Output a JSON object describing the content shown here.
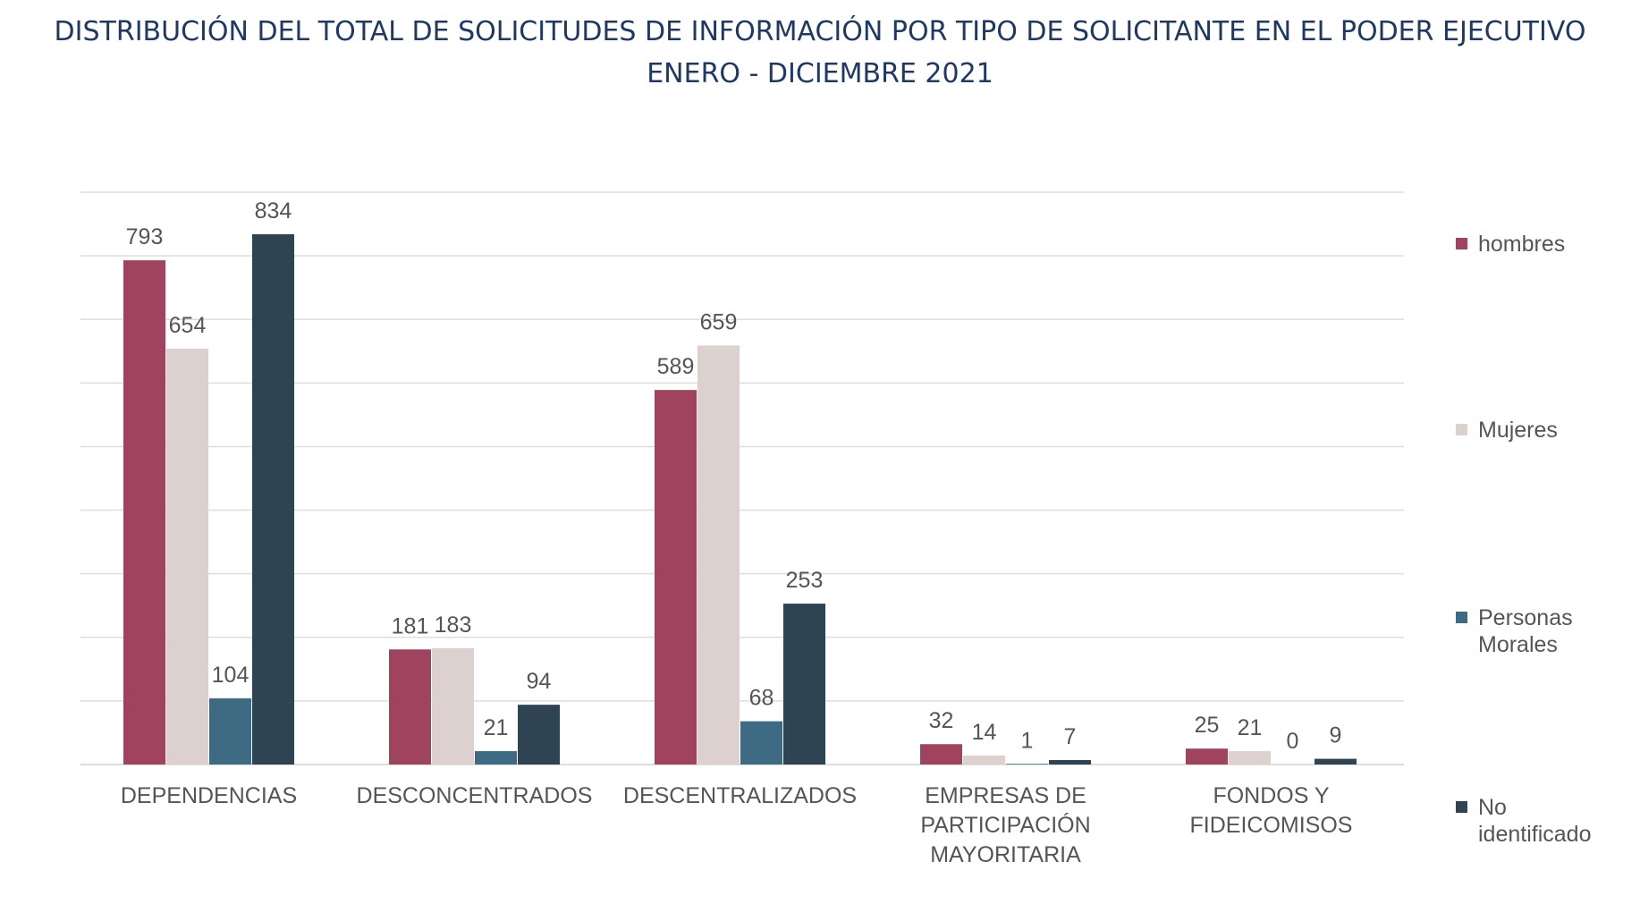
{
  "title": {
    "line1": "DISTRIBUCIÓN DEL TOTAL DE SOLICITUDES DE INFORMACIÓN POR TIPO DE SOLICITANTE EN EL PODER EJECUTIVO",
    "line2": "ENERO - DICIEMBRE 2021"
  },
  "colors": {
    "hombres": "#a0435e",
    "mujeres": "#ddd1cf",
    "personas_morales": "#3e6a83",
    "no_identificado": "#2e4452",
    "grid": "#dedede",
    "axis_text": "#555555",
    "title": "#1f3864"
  },
  "chart_data": {
    "type": "bar",
    "categories": [
      "DEPENDENCIAS",
      "DESCONCENTRADOS",
      "DESCENTRALIZADOS",
      "EMPRESAS DE PARTICIPACIÓN MAYORITARIA",
      "FONDOS Y FIDEICOMISOS"
    ],
    "category_lines": [
      [
        "DEPENDENCIAS"
      ],
      [
        "DESCONCENTRADOS"
      ],
      [
        "DESCENTRALIZADOS"
      ],
      [
        "EMPRESAS DE",
        "PARTICIPACIÓN",
        "MAYORITARIA"
      ],
      [
        "FONDOS Y",
        "FIDEICOMISOS"
      ]
    ],
    "series": [
      {
        "name": "hombres",
        "values": [
          793,
          181,
          589,
          32,
          25
        ]
      },
      {
        "name": "Mujeres",
        "values": [
          654,
          183,
          659,
          14,
          21
        ]
      },
      {
        "name": "Personas Morales",
        "values": [
          104,
          21,
          68,
          1,
          0
        ]
      },
      {
        "name": "No identificado",
        "values": [
          834,
          94,
          253,
          7,
          9
        ]
      }
    ],
    "legend_lines": [
      [
        "hombres"
      ],
      [
        "Mujeres"
      ],
      [
        "Personas",
        "Morales"
      ],
      [
        "No",
        "identificado"
      ]
    ],
    "legend_position": "right",
    "ylim": [
      0,
      900
    ],
    "gridlines": true,
    "xlabel": "",
    "ylabel": ""
  }
}
